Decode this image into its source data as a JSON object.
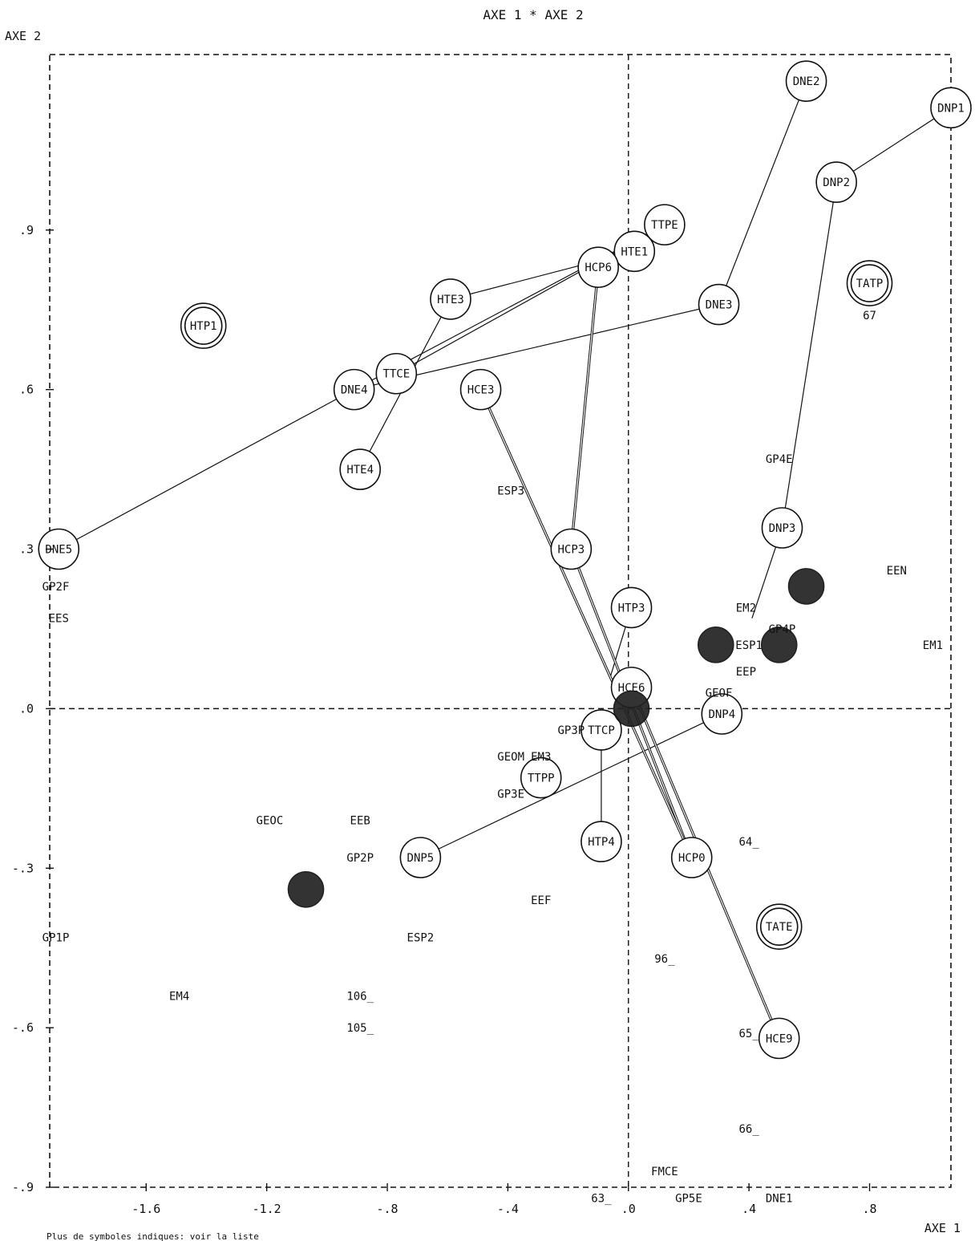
{
  "chart_data": {
    "type": "scatter",
    "title": "AXE 1  *  AXE 2",
    "xlabel": "AXE 1",
    "ylabel": "AXE 2",
    "xlim": [
      -1.92,
      1.07
    ],
    "ylim": [
      -0.9,
      1.23
    ],
    "xticks": [
      -1.6,
      -1.2,
      -0.8,
      -0.4,
      0.0,
      0.4,
      0.8
    ],
    "xtick_labels": [
      "-1.6",
      "-1.2",
      "-.8",
      "-.4",
      ".0",
      ".4",
      ".8"
    ],
    "yticks": [
      -0.9,
      -0.6,
      -0.3,
      0.0,
      0.3,
      0.6,
      0.9
    ],
    "ytick_labels": [
      "-.9",
      "-.6",
      "-.3",
      ".0",
      ".3",
      ".6",
      ".9"
    ],
    "footer_note": "Plus de symboles indiques: voir la liste",
    "points": [
      {
        "label": "DNE2",
        "x": 0.59,
        "y": 1.18,
        "style": "circle"
      },
      {
        "label": "DNP1",
        "x": 1.07,
        "y": 1.13,
        "style": "circle"
      },
      {
        "label": "DNP2",
        "x": 0.69,
        "y": 0.99,
        "style": "circle"
      },
      {
        "label": "TTPE",
        "x": 0.12,
        "y": 0.91,
        "style": "circle"
      },
      {
        "label": "HTE1",
        "x": 0.02,
        "y": 0.86,
        "style": "circle"
      },
      {
        "label": "HCP6",
        "x": -0.1,
        "y": 0.83,
        "style": "circle"
      },
      {
        "label": "TATP",
        "x": 0.8,
        "y": 0.8,
        "style": "double"
      },
      {
        "label": "HTE3",
        "x": -0.59,
        "y": 0.77,
        "style": "circle"
      },
      {
        "label": "DNE3",
        "x": 0.3,
        "y": 0.76,
        "style": "circle"
      },
      {
        "label": "HTP1",
        "x": -1.41,
        "y": 0.72,
        "style": "double"
      },
      {
        "label": "TTCE",
        "x": -0.77,
        "y": 0.63,
        "style": "circle"
      },
      {
        "label": "DNE4",
        "x": -0.91,
        "y": 0.6,
        "style": "circle"
      },
      {
        "label": "HCE3",
        "x": -0.49,
        "y": 0.6,
        "style": "circle"
      },
      {
        "label": "HTE4",
        "x": -0.89,
        "y": 0.45,
        "style": "circle"
      },
      {
        "label": "DNP3",
        "x": 0.51,
        "y": 0.34,
        "style": "circle"
      },
      {
        "label": "DNE5",
        "x": -1.89,
        "y": 0.3,
        "style": "circle"
      },
      {
        "label": "HCP3",
        "x": -0.19,
        "y": 0.3,
        "style": "circle"
      },
      {
        "label": "HTP3",
        "x": 0.01,
        "y": 0.19,
        "style": "circle"
      },
      {
        "label": "HCE6",
        "x": 0.01,
        "y": 0.04,
        "style": "circle"
      },
      {
        "label": "DNP4",
        "x": 0.31,
        "y": -0.01,
        "style": "circle"
      },
      {
        "label": "TTCP",
        "x": -0.09,
        "y": -0.04,
        "style": "circle"
      },
      {
        "label": "TTPP",
        "x": -0.29,
        "y": -0.13,
        "style": "circle"
      },
      {
        "label": "HTP4",
        "x": -0.09,
        "y": -0.25,
        "style": "circle"
      },
      {
        "label": "DNP5",
        "x": -0.69,
        "y": -0.28,
        "style": "circle"
      },
      {
        "label": "HCP0",
        "x": 0.21,
        "y": -0.28,
        "style": "circle"
      },
      {
        "label": "TATE",
        "x": 0.5,
        "y": -0.41,
        "style": "double"
      },
      {
        "label": "HCE9",
        "x": 0.5,
        "y": -0.62,
        "style": "circle"
      },
      {
        "label": "",
        "x": 0.59,
        "y": 0.23,
        "style": "blob"
      },
      {
        "label": "",
        "x": 0.29,
        "y": 0.12,
        "style": "blob"
      },
      {
        "label": "",
        "x": 0.5,
        "y": 0.12,
        "style": "blob"
      },
      {
        "label": "",
        "x": 0.01,
        "y": 0.0,
        "style": "blob"
      },
      {
        "label": "",
        "x": -1.07,
        "y": -0.34,
        "style": "blob"
      }
    ],
    "labels": [
      {
        "text": "GP4E",
        "x": 0.5,
        "y": 0.47
      },
      {
        "text": "EEN",
        "x": 0.89,
        "y": 0.26
      },
      {
        "text": "EM2",
        "x": 0.39,
        "y": 0.19
      },
      {
        "text": "GP4P",
        "x": 0.51,
        "y": 0.15
      },
      {
        "text": "ESP1",
        "x": 0.4,
        "y": 0.12
      },
      {
        "text": "EM1",
        "x": 1.01,
        "y": 0.12
      },
      {
        "text": "EEP",
        "x": 0.39,
        "y": 0.07
      },
      {
        "text": "GEOF",
        "x": 0.3,
        "y": 0.03
      },
      {
        "text": "ESP3",
        "x": -0.39,
        "y": 0.41
      },
      {
        "text": "GP2F",
        "x": -1.9,
        "y": 0.23
      },
      {
        "text": "EES",
        "x": -1.89,
        "y": 0.17
      },
      {
        "text": "GP3P",
        "x": -0.19,
        "y": -0.04
      },
      {
        "text": "GEOM",
        "x": -0.39,
        "y": -0.09
      },
      {
        "text": "EM3",
        "x": -0.29,
        "y": -0.09
      },
      {
        "text": "GP3E",
        "x": -0.39,
        "y": -0.16
      },
      {
        "text": "GEOC",
        "x": -1.19,
        "y": -0.21
      },
      {
        "text": "EEB",
        "x": -0.89,
        "y": -0.21
      },
      {
        "text": "GP2P",
        "x": -0.89,
        "y": -0.28
      },
      {
        "text": "EEF",
        "x": -0.29,
        "y": -0.36
      },
      {
        "text": "ESP2",
        "x": -0.69,
        "y": -0.43
      },
      {
        "text": "GP1P",
        "x": -1.9,
        "y": -0.43
      },
      {
        "text": "EM4",
        "x": -1.49,
        "y": -0.54
      },
      {
        "text": "64_",
        "x": 0.4,
        "y": -0.25
      },
      {
        "text": "96_",
        "x": 0.12,
        "y": -0.47
      },
      {
        "text": "106_",
        "x": -0.89,
        "y": -0.54
      },
      {
        "text": "105_",
        "x": -0.89,
        "y": -0.6
      },
      {
        "text": "65_",
        "x": 0.4,
        "y": -0.61
      },
      {
        "text": "66_",
        "x": 0.4,
        "y": -0.79
      },
      {
        "text": "67",
        "x": 0.8,
        "y": 0.74
      },
      {
        "text": "FMCE",
        "x": 0.12,
        "y": -0.87
      },
      {
        "text": "63_",
        "x": -0.09,
        "y": -0.92
      },
      {
        "text": "GP5E",
        "x": 0.2,
        "y": -0.92
      },
      {
        "text": "DNE1",
        "x": 0.5,
        "y": -0.92
      }
    ],
    "trajectories": [
      {
        "style": "single",
        "points": [
          [
            -1.89,
            0.3
          ],
          [
            -0.91,
            0.6
          ],
          [
            0.3,
            0.76
          ],
          [
            0.59,
            1.18
          ]
        ]
      },
      {
        "style": "single",
        "points": [
          [
            -0.89,
            0.45
          ],
          [
            -0.59,
            0.77
          ],
          [
            0.02,
            0.86
          ]
        ]
      },
      {
        "style": "single",
        "points": [
          [
            -0.77,
            0.63
          ],
          [
            0.12,
            0.91
          ]
        ]
      },
      {
        "style": "single",
        "points": [
          [
            -0.91,
            0.6
          ],
          [
            0.12,
            0.91
          ]
        ]
      },
      {
        "style": "single",
        "points": [
          [
            1.07,
            1.13
          ],
          [
            0.69,
            0.99
          ],
          [
            0.51,
            0.34
          ],
          [
            0.41,
            0.17
          ]
        ]
      },
      {
        "style": "single",
        "points": [
          [
            -0.69,
            -0.28
          ],
          [
            0.31,
            -0.01
          ]
        ]
      },
      {
        "style": "single",
        "points": [
          [
            -0.09,
            -0.04
          ],
          [
            -0.09,
            -0.25
          ]
        ]
      },
      {
        "style": "single",
        "points": [
          [
            0.01,
            0.19
          ],
          [
            -0.06,
            0.06
          ],
          [
            0.01,
            0.0
          ]
        ]
      },
      {
        "style": "double",
        "points": [
          [
            0.02,
            0.86
          ],
          [
            -0.1,
            0.83
          ],
          [
            -0.19,
            0.3
          ],
          [
            0.21,
            -0.28
          ]
        ]
      },
      {
        "style": "double",
        "points": [
          [
            -0.49,
            0.6
          ],
          [
            0.21,
            -0.28
          ]
        ]
      },
      {
        "style": "double",
        "points": [
          [
            0.01,
            0.04
          ],
          [
            0.5,
            -0.62
          ]
        ]
      }
    ]
  }
}
